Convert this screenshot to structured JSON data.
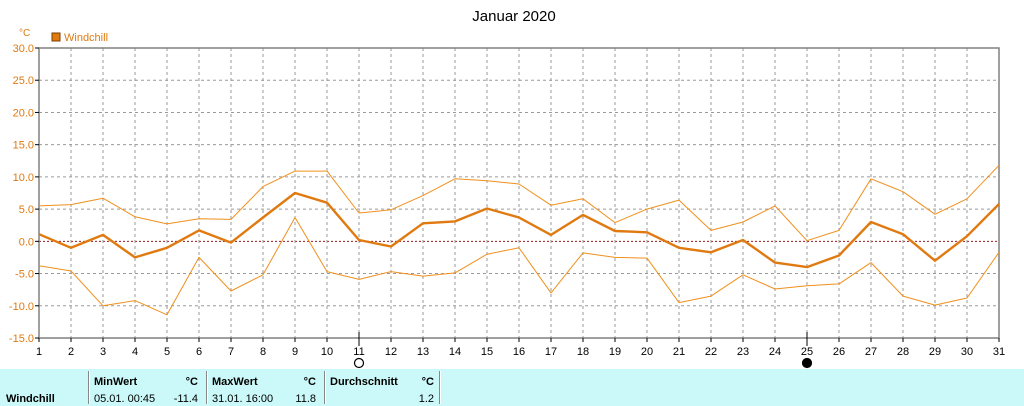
{
  "chart_data": {
    "type": "line",
    "title": "Januar 2020",
    "ylabel": "°C",
    "ylim": [
      -15,
      30
    ],
    "yticks": [
      "30.0",
      "25.0",
      "20.0",
      "15.0",
      "10.0",
      "5.0",
      "0.0",
      "-5.0",
      "-10.0",
      "-15.0"
    ],
    "x": [
      1,
      2,
      3,
      4,
      5,
      6,
      7,
      8,
      9,
      10,
      11,
      12,
      13,
      14,
      15,
      16,
      17,
      18,
      19,
      20,
      21,
      22,
      23,
      24,
      25,
      26,
      27,
      28,
      29,
      30,
      31
    ],
    "legend": [
      "Windchill"
    ],
    "grid": true,
    "moon_phases": {
      "new_moon_day": 25,
      "full_moon_day": 11
    },
    "series": [
      {
        "name": "Windchill",
        "role": "average",
        "values": [
          1.1,
          -1.0,
          1.0,
          -2.5,
          -1.0,
          1.7,
          -0.2,
          3.7,
          7.5,
          6.0,
          0.2,
          -0.8,
          2.8,
          3.1,
          5.1,
          3.7,
          1.0,
          4.1,
          1.6,
          1.4,
          -1.0,
          -1.7,
          0.2,
          -3.3,
          -4.0,
          -2.2,
          3.0,
          1.1,
          -3.0,
          0.8,
          5.8
        ]
      },
      {
        "name": "",
        "role": "max",
        "values": [
          5.5,
          5.7,
          6.7,
          3.8,
          2.7,
          3.5,
          3.4,
          8.5,
          10.9,
          10.9,
          4.4,
          4.9,
          7.1,
          9.7,
          9.4,
          8.9,
          5.6,
          6.6,
          2.9,
          5.0,
          6.4,
          1.7,
          3.0,
          5.5,
          0.1,
          1.7,
          9.7,
          7.7,
          4.2,
          6.6,
          11.8
        ]
      },
      {
        "name": "",
        "role": "min",
        "values": [
          -3.8,
          -4.6,
          -10.0,
          -9.2,
          -11.4,
          -2.5,
          -7.7,
          -5.2,
          3.7,
          -4.7,
          -5.9,
          -4.7,
          -5.4,
          -4.9,
          -2.0,
          -1.0,
          -8.0,
          -1.8,
          -2.5,
          -2.6,
          -9.5,
          -8.5,
          -5.2,
          -7.4,
          -6.9,
          -6.6,
          -3.3,
          -8.5,
          -9.9,
          -8.8,
          -1.7
        ]
      }
    ]
  },
  "colors": {
    "series_main": "#e07a10",
    "series_band": "#f0901c",
    "grid": "#9a9a9a",
    "zero_line": "#9a1e1e",
    "stats_bg": "#cbf8f8",
    "frame": "#808080"
  },
  "stats": {
    "label": "Windchill",
    "min": {
      "header": "MinWert",
      "unit": "°C",
      "when": "05.01.  00:45",
      "value": "-11.4"
    },
    "max": {
      "header": "MaxWert",
      "unit": "°C",
      "when": "31.01.  16:00",
      "value": "11.8"
    },
    "avg": {
      "header": "Durchschnitt",
      "unit": "°C",
      "value": "1.2"
    }
  }
}
